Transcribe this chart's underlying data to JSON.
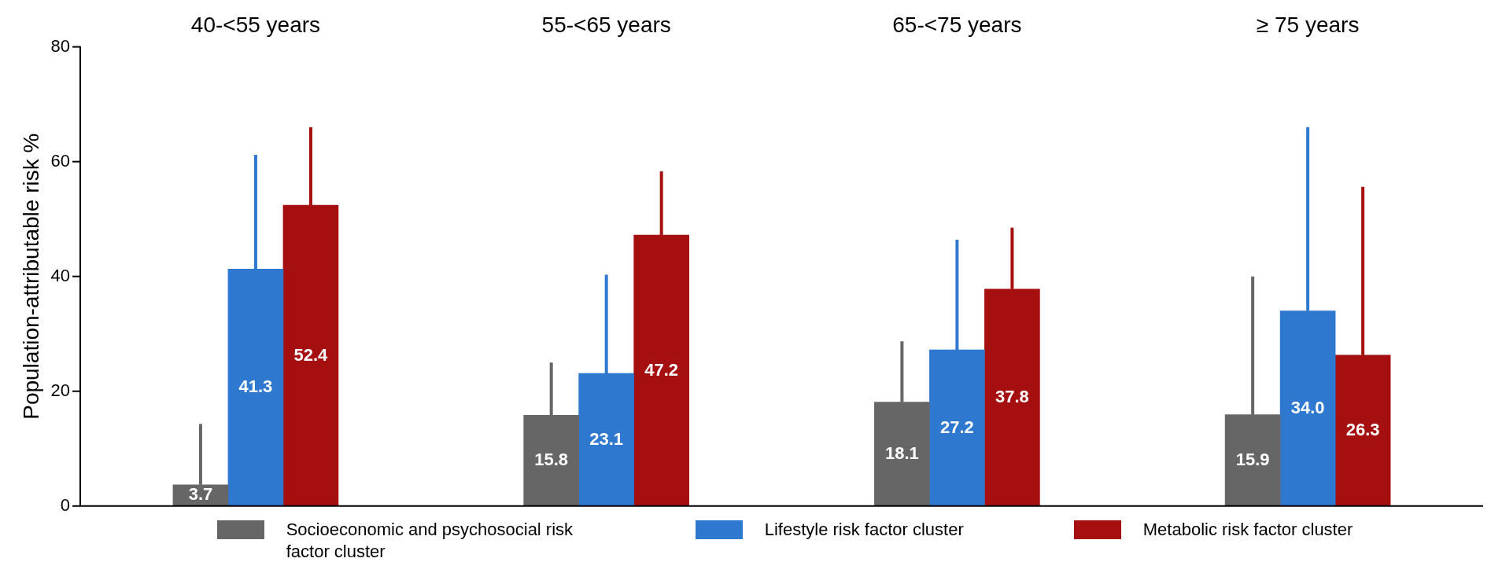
{
  "chart_data": {
    "type": "bar",
    "ylabel": "Population-attributable risk %",
    "categories": [
      "40-<55 years",
      "55-<65 years",
      "65-<75 years",
      "≥ 75 years"
    ],
    "series": [
      {
        "name": "Socioeconomic and psychosocial risk factor cluster",
        "color": "#666666",
        "values": [
          3.7,
          15.8,
          18.1,
          15.9
        ],
        "value_labels": [
          "3.7",
          "15.8",
          "18.1",
          "15.9"
        ],
        "errors": [
          [
            3.7,
            14.3
          ],
          [
            15.8,
            25.0
          ],
          [
            18.1,
            28.7
          ],
          [
            15.9,
            40.0
          ]
        ]
      },
      {
        "name": "Lifestyle risk factor cluster",
        "color": "#2f78cf",
        "values": [
          41.3,
          23.1,
          27.2,
          34.0
        ],
        "value_labels": [
          "41.3",
          "23.1",
          "27.2",
          "34.0"
        ],
        "errors": [
          [
            41.3,
            61.2
          ],
          [
            23.1,
            40.3
          ],
          [
            27.2,
            46.4
          ],
          [
            34.0,
            66.0
          ]
        ]
      },
      {
        "name": "Metabolic risk factor cluster",
        "color": "#a50f0f",
        "values": [
          52.4,
          47.2,
          37.8,
          26.3
        ],
        "value_labels": [
          "52.4",
          "47.2",
          "37.8",
          "26.3"
        ],
        "errors": [
          [
            52.4,
            66.0
          ],
          [
            47.2,
            58.3
          ],
          [
            37.8,
            48.5
          ],
          [
            26.3,
            55.6
          ]
        ]
      }
    ],
    "ylim": [
      0,
      80
    ],
    "yticks": [
      0,
      20,
      40,
      60,
      80
    ],
    "grid": false,
    "legend": "bottom"
  }
}
